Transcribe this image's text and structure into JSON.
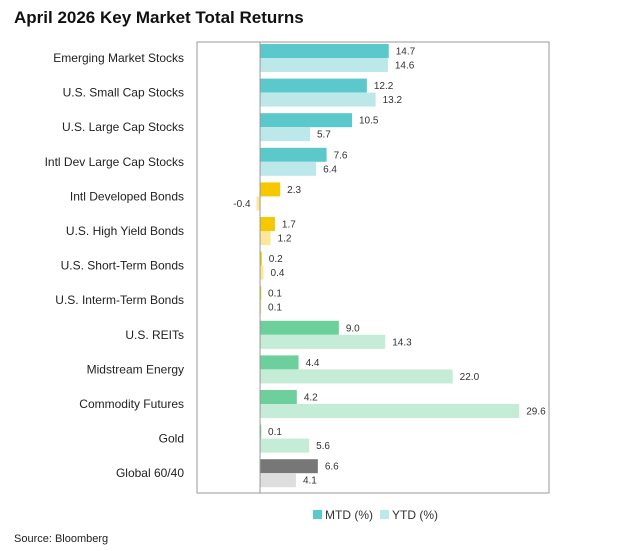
{
  "title": "April 2026 Key Market Total Returns",
  "source": "Source: Bloomberg",
  "chart_data": {
    "type": "bar",
    "orientation": "horizontal",
    "categories": [
      "Emerging Market Stocks",
      "U.S. Small Cap Stocks",
      "U.S. Large Cap Stocks",
      "Intl Dev Large Cap Stocks",
      "Intl Developed Bonds",
      "U.S. High Yield Bonds",
      "U.S. Short-Term Bonds",
      "U.S. Interm-Term Bonds",
      "U.S. REITs",
      "Midstream Energy",
      "Commodity Futures",
      "Gold",
      "Global 60/40"
    ],
    "series": [
      {
        "name": "MTD (%)",
        "values": [
          14.7,
          12.2,
          10.5,
          7.6,
          2.3,
          1.7,
          0.2,
          0.1,
          9.0,
          4.4,
          4.2,
          0.1,
          6.6
        ],
        "value_labels": [
          "14.7",
          "12.2",
          "10.5",
          "7.6",
          "2.3",
          "1.7",
          "0.2",
          "0.1",
          "9.0",
          "4.4",
          "4.2",
          "0.1",
          "6.6"
        ]
      },
      {
        "name": "YTD (%)",
        "values": [
          14.6,
          13.2,
          5.7,
          6.4,
          -0.4,
          1.2,
          0.4,
          0.1,
          14.3,
          22.0,
          29.6,
          5.6,
          4.1
        ],
        "value_labels": [
          "14.6",
          "13.2",
          "5.7",
          "6.4",
          "-0.4",
          "1.2",
          "0.4",
          "0.1",
          "14.3",
          "22.0",
          "29.6",
          "5.6",
          "4.1"
        ]
      }
    ],
    "colors": {
      "mtd": [
        "#5bc8cc",
        "#5bc8cc",
        "#5bc8cc",
        "#5bc8cc",
        "#f5c800",
        "#f5c800",
        "#f5c800",
        "#f5c800",
        "#6dcf9c",
        "#6dcf9c",
        "#6dcf9c",
        "#6dcf9c",
        "#777777"
      ],
      "ytd": [
        "#bde8ea",
        "#bde8ea",
        "#bde8ea",
        "#bde8ea",
        "#fbe898",
        "#fbe898",
        "#fbe898",
        "#fbe898",
        "#c4ecd6",
        "#c4ecd6",
        "#c4ecd6",
        "#c4ecd6",
        "#dedede"
      ],
      "legend_mtd": "#5bc8cc",
      "legend_ytd": "#bde8ea",
      "axis": "#999999"
    },
    "xlim": [
      -7.2,
      33.0
    ],
    "grid": false,
    "legend_position": "bottom"
  }
}
